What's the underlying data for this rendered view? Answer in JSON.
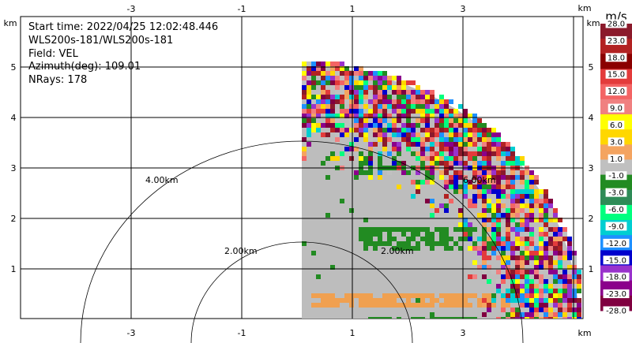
{
  "info": {
    "start_time": "Start time: 2022/04/25 12:02:48.446",
    "site": "WLS200s-181/WLS200s-181",
    "field": "Field: VEL",
    "azimuth": "Azimuth(deg): 109.01",
    "nrays": "NRays: 178"
  },
  "axes": {
    "x_ticks": [
      "-3",
      "-1",
      "1",
      "3"
    ],
    "y_ticks": [
      "1",
      "2",
      "3",
      "4",
      "5"
    ],
    "unit": "km"
  },
  "range_rings": [
    "2.00km",
    "4.00km",
    "6.00km",
    "2.00km"
  ],
  "colorbar": {
    "unit": "m/s",
    "labels": [
      "28.0",
      "23.0",
      "18.0",
      "15.0",
      "12.0",
      "9.0",
      "6.0",
      "3.0",
      "1.0",
      "-1.0",
      "-3.0",
      "-6.0",
      "-9.0",
      "-12.0",
      "-15.0",
      "-18.0",
      "-23.0",
      "-28.0"
    ],
    "colors": [
      "#8b1a2b",
      "#b22222",
      "#8b0000",
      "#e33b3b",
      "#f36464",
      "#f08080",
      "#ffff00",
      "#ffd700",
      "#f4a460",
      "#c0c0c0",
      "#228b22",
      "#2e8b57",
      "#00ff7f",
      "#00ced1",
      "#1e90ff",
      "#0000cd",
      "#9932cc",
      "#8b008b",
      "#800040"
    ]
  }
}
